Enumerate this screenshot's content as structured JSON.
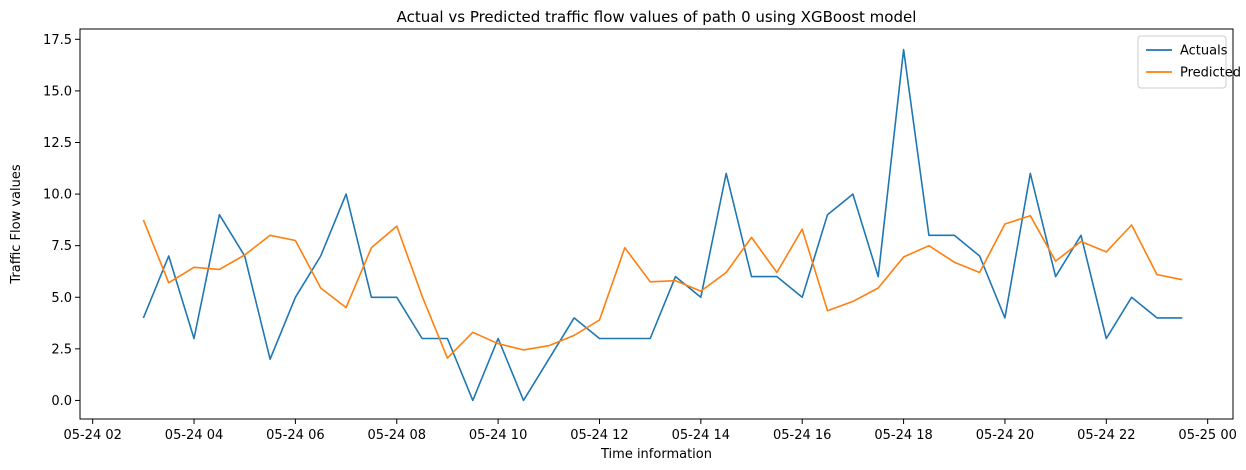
{
  "chart_data": {
    "type": "line",
    "title": "Actual vs Predicted traffic flow values of path 0 using XGBoost model",
    "xlabel": "Time information",
    "ylabel": "Traffic Flow values",
    "x_tick_labels": [
      "05-24 02",
      "05-24 04",
      "05-24 06",
      "05-24 08",
      "05-24 10",
      "05-24 12",
      "05-24 14",
      "05-24 16",
      "05-24 18",
      "05-24 20",
      "05-24 22",
      "05-25 00"
    ],
    "y_tick_labels": [
      "0.0",
      "2.5",
      "5.0",
      "7.5",
      "10.0",
      "12.5",
      "15.0",
      "17.5"
    ],
    "ylim": [
      -0.9,
      18.0
    ],
    "xlim_hours": [
      1.75,
      24.5
    ],
    "grid": false,
    "legend_position": "top-right",
    "x_hours": [
      3.0,
      3.5,
      4.0,
      4.5,
      5.0,
      5.5,
      6.0,
      6.5,
      7.0,
      7.5,
      8.0,
      8.5,
      9.0,
      9.5,
      10.0,
      10.5,
      11.0,
      11.5,
      12.0,
      12.5,
      13.0,
      13.5,
      14.0,
      14.5,
      15.0,
      15.5,
      16.0,
      16.5,
      17.0,
      17.5,
      18.0,
      18.5,
      19.0,
      19.5,
      20.0,
      20.5,
      21.0,
      21.5,
      22.0,
      22.5,
      23.0,
      23.5
    ],
    "series": [
      {
        "name": "Actuals",
        "color": "#1f77b4",
        "values": [
          4,
          7,
          3,
          9,
          7,
          2,
          5,
          7,
          10,
          5,
          5,
          3,
          3,
          0,
          3,
          0,
          2,
          4,
          3,
          3,
          3,
          6,
          5,
          11,
          6,
          6,
          5,
          9,
          10,
          6,
          17,
          8,
          8,
          7,
          4,
          11,
          6,
          8,
          3,
          5,
          4,
          4
        ]
      },
      {
        "name": "Predicted",
        "color": "#ff7f0e",
        "values": [
          8.75,
          5.7,
          6.45,
          6.35,
          7.05,
          8.0,
          7.75,
          5.45,
          4.5,
          7.4,
          8.45,
          5.05,
          2.05,
          3.3,
          2.75,
          2.45,
          2.65,
          3.15,
          3.9,
          7.4,
          5.75,
          5.8,
          5.3,
          6.2,
          7.9,
          6.2,
          8.3,
          4.35,
          4.8,
          5.45,
          6.95,
          7.5,
          6.7,
          6.2,
          8.55,
          8.95,
          6.75,
          7.7,
          7.2,
          8.5,
          6.1,
          5.85
        ]
      }
    ]
  }
}
